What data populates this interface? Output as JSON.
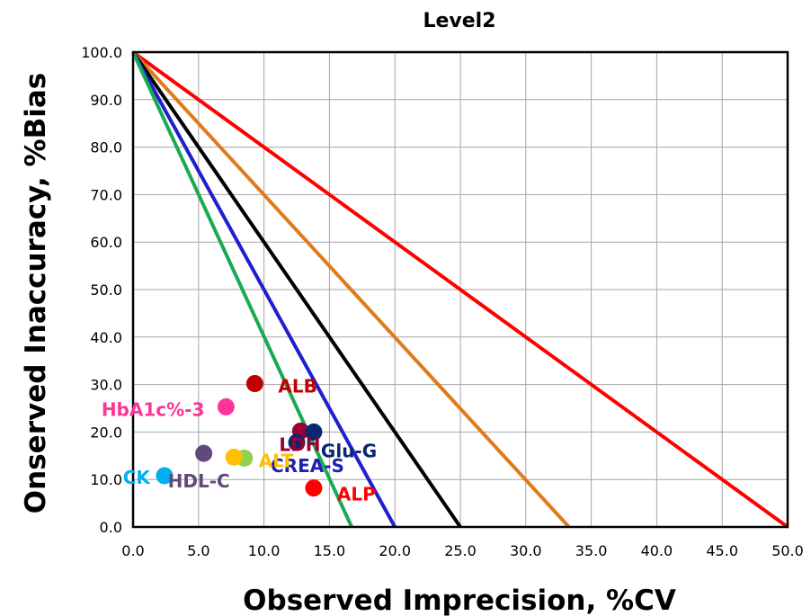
{
  "chart_data": {
    "type": "scatter",
    "title": "Level2",
    "xlabel": "Observed Imprecision, %CV",
    "ylabel": "Onserved Inaccuracy, %Bias",
    "xlim": [
      0,
      50
    ],
    "ylim": [
      0,
      100
    ],
    "x_ticks": [
      "0.0",
      "5.0",
      "10.0",
      "15.0",
      "20.0",
      "25.0",
      "30.0",
      "35.0",
      "40.0",
      "45.0",
      "50.0"
    ],
    "y_ticks": [
      "0.0",
      "10.0",
      "20.0",
      "30.0",
      "40.0",
      "50.0",
      "60.0",
      "70.0",
      "80.0",
      "90.0",
      "100.0"
    ],
    "grid": true,
    "lines": [
      {
        "x": [
          0,
          50
        ],
        "y": [
          100,
          0
        ],
        "color": "#ff0000"
      },
      {
        "x": [
          0,
          33.3
        ],
        "y": [
          100,
          0
        ],
        "color": "#e07b1a"
      },
      {
        "x": [
          0,
          25
        ],
        "y": [
          100,
          0
        ],
        "color": "#000000"
      },
      {
        "x": [
          0,
          20
        ],
        "y": [
          100,
          0
        ],
        "color": "#1f1fcc"
      },
      {
        "x": [
          0,
          16.7
        ],
        "y": [
          100,
          0
        ],
        "color": "#1aaa55"
      }
    ],
    "points": [
      {
        "label": "ALB",
        "x": 9.3,
        "y": 30.2,
        "color": "#c00000",
        "label_color": "#c00000"
      },
      {
        "label": "LDH",
        "x": 12.8,
        "y": 20.2,
        "color": "#990033",
        "label_color": "#990033"
      },
      {
        "label": "HbA1c%-3",
        "x": 7.1,
        "y": 25.3,
        "color": "#ff3399",
        "label_color": "#ff3399"
      },
      {
        "label": "Glu-G",
        "x": 13.8,
        "y": 20.0,
        "color": "#0a2870",
        "label_color": "#0a2870"
      },
      {
        "label": "CREA-S",
        "x": 12.5,
        "y": 17.8,
        "color": "#0a2870",
        "label_color": "#2020b0"
      },
      {
        "label": "ALT",
        "x": 8.5,
        "y": 14.5,
        "color": "#92d050",
        "label_color": "#ffc000"
      },
      {
        "label": "",
        "x": 7.7,
        "y": 14.7,
        "color": "#ffc000",
        "label_color": "#ffc000"
      },
      {
        "label": "HDL-C",
        "x": 5.4,
        "y": 15.5,
        "color": "#604a7b",
        "label_color": "#604a7b"
      },
      {
        "label": "CK",
        "x": 2.4,
        "y": 10.8,
        "color": "#00b0f0",
        "label_color": "#00b0f0"
      },
      {
        "label": "ALP",
        "x": 13.8,
        "y": 8.2,
        "color": "#ff0000",
        "label_color": "#ff0000"
      }
    ]
  }
}
